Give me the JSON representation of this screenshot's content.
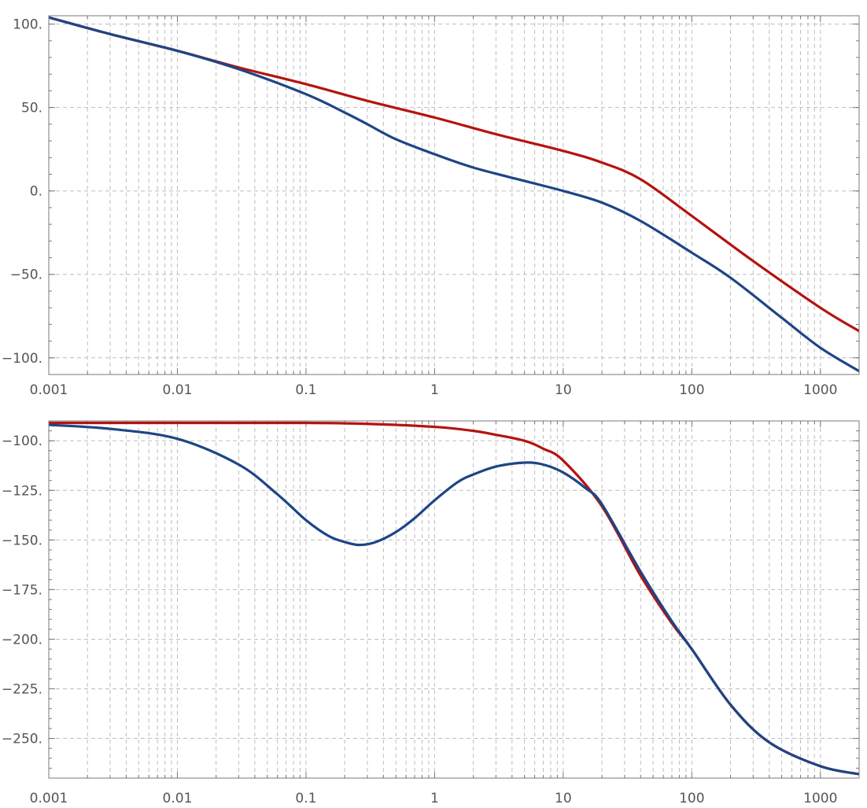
{
  "chart_data": [
    {
      "type": "line",
      "title": "",
      "xlabel": "",
      "ylabel": "",
      "x_scale": "log",
      "xlim": [
        0.001,
        2000
      ],
      "ylim": [
        -110,
        105
      ],
      "grid": true,
      "x_ticks": [
        "0.001",
        "0.01",
        "0.1",
        "1",
        "10",
        "100",
        "1000"
      ],
      "y_ticks": [
        "100.",
        "50.",
        "0.",
        "-50.",
        "-100."
      ],
      "series": [
        {
          "color": "#b5130f",
          "x": [
            0.001,
            0.003,
            0.01,
            0.03,
            0.1,
            0.3,
            1,
            3,
            10,
            20,
            40,
            100,
            300,
            1000,
            2000
          ],
          "y": [
            104,
            94,
            84,
            74,
            64,
            54,
            44,
            34,
            24,
            17,
            7,
            -15,
            -42,
            -70,
            -84
          ]
        },
        {
          "color": "#1e4585",
          "x": [
            0.001,
            0.003,
            0.01,
            0.03,
            0.1,
            0.2,
            0.3,
            0.5,
            1,
            2,
            5,
            10,
            20,
            40,
            100,
            200,
            500,
            1000,
            2000
          ],
          "y": [
            104,
            94,
            84,
            73,
            58,
            47,
            40,
            31,
            22,
            14,
            6,
            0,
            -7,
            -18,
            -37,
            -52,
            -76,
            -94,
            -108
          ]
        }
      ]
    },
    {
      "type": "line",
      "title": "",
      "xlabel": "",
      "ylabel": "",
      "x_scale": "log",
      "xlim": [
        0.001,
        2000
      ],
      "ylim": [
        -270,
        -90
      ],
      "grid": true,
      "x_ticks": [
        "0.001",
        "0.01",
        "0.1",
        "1",
        "10",
        "100",
        "1000"
      ],
      "y_ticks": [
        "-100.",
        "-125.",
        "-150.",
        "-175.",
        "-200.",
        "-225.",
        "-250."
      ],
      "series": [
        {
          "color": "#b5130f",
          "x": [
            0.001,
            0.01,
            0.1,
            0.3,
            1,
            2,
            3,
            5,
            7,
            10,
            20,
            40,
            70,
            100,
            200,
            400,
            1000,
            2000
          ],
          "y": [
            -91,
            -91,
            -91,
            -91.5,
            -93,
            -95,
            -97,
            -100,
            -104,
            -110,
            -133,
            -168,
            -192,
            -205,
            -233,
            -252,
            -264,
            -268
          ]
        },
        {
          "color": "#1e4585",
          "x": [
            0.001,
            0.003,
            0.01,
            0.03,
            0.06,
            0.1,
            0.15,
            0.2,
            0.26,
            0.35,
            0.5,
            0.7,
            1,
            1.5,
            2,
            3,
            5,
            7,
            10,
            15,
            20,
            40,
            70,
            100,
            200,
            400,
            1000,
            2000
          ],
          "y": [
            -92,
            -94,
            -99,
            -112,
            -127,
            -140,
            -148,
            -151,
            -152.5,
            -151,
            -146,
            -139,
            -130,
            -121,
            -117,
            -113,
            -111,
            -112,
            -116,
            -124,
            -132,
            -166,
            -191,
            -205,
            -233,
            -252,
            -264,
            -268
          ]
        }
      ]
    }
  ]
}
